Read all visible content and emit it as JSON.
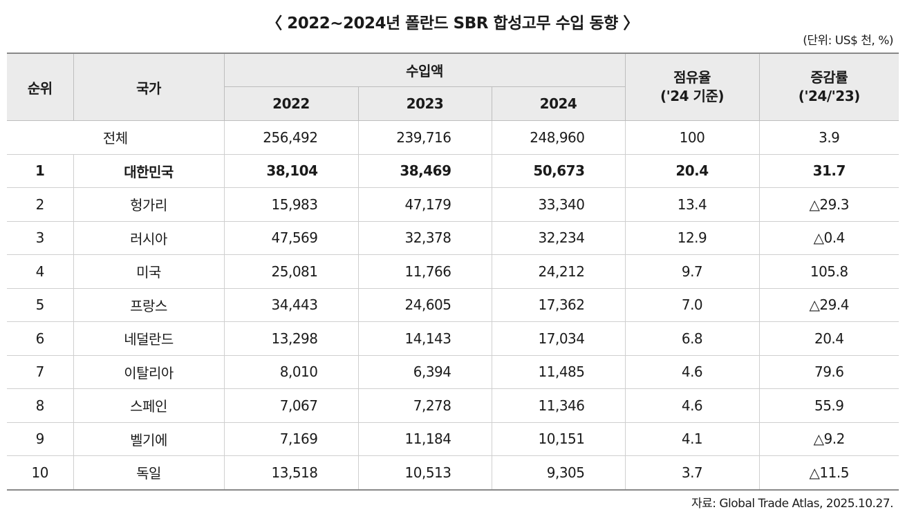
{
  "title": "〈 2022~2024년 폴란드 SBR 합성고무 수입 동향 〉",
  "unit": "(단위: US$ 천, %)",
  "header": {
    "rank": "순위",
    "country": "국가",
    "import_amount": "수입액",
    "years": [
      "2022",
      "2023",
      "2024"
    ],
    "share_line1": "점유율",
    "share_line2": "('24 기준)",
    "growth_line1": "증감률",
    "growth_line2": "('24/'23)"
  },
  "total": {
    "label": "전체",
    "v2022": "256,492",
    "v2023": "239,716",
    "v2024": "248,960",
    "share": "100",
    "growth": "3.9"
  },
  "rows": [
    {
      "rank": "1",
      "country": "대한민국",
      "v2022": "38,104",
      "v2023": "38,469",
      "v2024": "50,673",
      "share": "20.4",
      "growth": "31.7"
    },
    {
      "rank": "2",
      "country": "헝가리",
      "v2022": "15,983",
      "v2023": "47,179",
      "v2024": "33,340",
      "share": "13.4",
      "growth": "△29.3"
    },
    {
      "rank": "3",
      "country": "러시아",
      "v2022": "47,569",
      "v2023": "32,378",
      "v2024": "32,234",
      "share": "12.9",
      "growth": "△0.4"
    },
    {
      "rank": "4",
      "country": "미국",
      "v2022": "25,081",
      "v2023": "11,766",
      "v2024": "24,212",
      "share": "9.7",
      "growth": "105.8"
    },
    {
      "rank": "5",
      "country": "프랑스",
      "v2022": "34,443",
      "v2023": "24,605",
      "v2024": "17,362",
      "share": "7.0",
      "growth": "△29.4"
    },
    {
      "rank": "6",
      "country": "네덜란드",
      "v2022": "13,298",
      "v2023": "14,143",
      "v2024": "17,034",
      "share": "6.8",
      "growth": "20.4"
    },
    {
      "rank": "7",
      "country": "이탈리아",
      "v2022": "8,010",
      "v2023": "6,394",
      "v2024": "11,485",
      "share": "4.6",
      "growth": "79.6"
    },
    {
      "rank": "8",
      "country": "스페인",
      "v2022": "7,067",
      "v2023": "7,278",
      "v2024": "11,346",
      "share": "4.6",
      "growth": "55.9"
    },
    {
      "rank": "9",
      "country": "벨기에",
      "v2022": "7,169",
      "v2023": "11,184",
      "v2024": "10,151",
      "share": "4.1",
      "growth": "△9.2"
    },
    {
      "rank": "10",
      "country": "독일",
      "v2022": "13,518",
      "v2023": "10,513",
      "v2024": "9,305",
      "share": "3.7",
      "growth": "△11.5"
    }
  ],
  "source": "자료: Global Trade Atlas, 2025.10.27."
}
